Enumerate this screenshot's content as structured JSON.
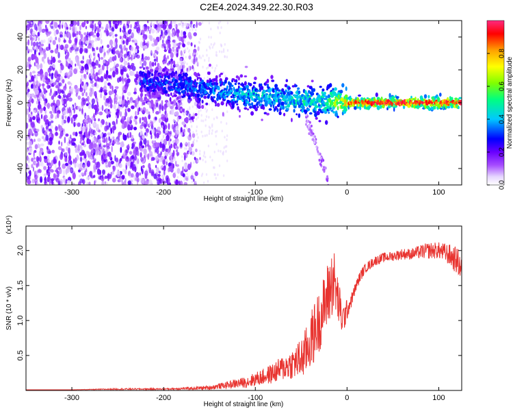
{
  "title": "C2E4.2024.349.22.30.R03",
  "chart_data": [
    {
      "type": "heatmap",
      "xlabel": "Height of straight line (km)",
      "ylabel": "Frequency (Hz)",
      "xlim": [
        -350,
        125
      ],
      "ylim": [
        -50,
        50
      ],
      "xticks": [
        -300,
        -200,
        -100,
        0,
        100
      ],
      "yticks": [
        -40,
        -20,
        0,
        20,
        40
      ],
      "xtick_labels": [
        "-300",
        "-200",
        "-100",
        "0",
        "100"
      ],
      "ytick_labels": [
        "-40",
        "-20",
        "0",
        "20",
        "40"
      ],
      "grid": false,
      "colorbar": {
        "label": "Normalized spectral amplitude",
        "range": [
          0,
          1
        ],
        "ticks": [
          0.0,
          0.2,
          0.4,
          0.6,
          0.8
        ],
        "tick_labels": [
          "0.0",
          "0.2",
          "0.4",
          "0.6",
          "0.8"
        ],
        "colors": [
          "#ffffff",
          "#e6d6ff",
          "#a64dff",
          "#6a00ff",
          "#0000ff",
          "#00c8ff",
          "#00ff80",
          "#80ff00",
          "#ffff00",
          "#ffa000",
          "#ff0000",
          "#ff2a80"
        ]
      },
      "ridge": {
        "x": [
          -225,
          -200,
          -175,
          -150,
          -125,
          -100,
          -80,
          -60,
          -40,
          -20,
          0,
          25,
          50,
          75,
          100,
          125
        ],
        "center_frequency": [
          13,
          12,
          10,
          8,
          6,
          4,
          3,
          2,
          1,
          0.5,
          0,
          0,
          0,
          0,
          0,
          0
        ],
        "peak_amplitude": [
          0.35,
          0.35,
          0.4,
          0.4,
          0.45,
          0.5,
          0.5,
          0.55,
          0.55,
          0.6,
          0.85,
          0.9,
          0.9,
          0.9,
          0.9,
          0.9
        ]
      }
    },
    {
      "type": "line",
      "xlabel": "Height of straight line (km)",
      "ylabel": "SNR (10 * v/v)",
      "y_multiplier_label": "(x10⁴)",
      "xlim": [
        -350,
        125
      ],
      "ylim": [
        0,
        2.35
      ],
      "xticks": [
        -300,
        -200,
        -100,
        0,
        100
      ],
      "yticks": [
        0.5,
        1.0,
        1.5,
        2.0
      ],
      "xtick_labels": [
        "-300",
        "-200",
        "-100",
        "0",
        "100"
      ],
      "ytick_labels": [
        "0.5",
        "1.0",
        "1.5",
        "2.0"
      ],
      "grid": false,
      "color": "#e8332f",
      "x": [
        -350,
        -300,
        -250,
        -200,
        -170,
        -150,
        -130,
        -110,
        -100,
        -90,
        -80,
        -70,
        -60,
        -50,
        -45,
        -40,
        -35,
        -30,
        -25,
        -20,
        -15,
        -10,
        -5,
        0,
        5,
        10,
        15,
        20,
        25,
        30,
        40,
        50,
        60,
        70,
        80,
        90,
        100,
        110,
        120,
        125
      ],
      "values": [
        0.01,
        0.01,
        0.02,
        0.02,
        0.03,
        0.04,
        0.08,
        0.12,
        0.16,
        0.2,
        0.25,
        0.32,
        0.38,
        0.45,
        0.55,
        0.7,
        0.85,
        1.0,
        1.2,
        1.4,
        1.6,
        1.3,
        1.0,
        1.15,
        1.3,
        1.5,
        1.65,
        1.75,
        1.8,
        1.85,
        1.9,
        1.92,
        1.95,
        1.95,
        1.98,
        2.0,
        2.0,
        1.95,
        1.85,
        1.75
      ],
      "noise_amplitude": [
        0.0,
        0.0,
        0.01,
        0.01,
        0.02,
        0.03,
        0.05,
        0.08,
        0.1,
        0.12,
        0.15,
        0.18,
        0.22,
        0.3,
        0.35,
        0.4,
        0.45,
        0.45,
        0.45,
        0.5,
        0.5,
        0.35,
        0.25,
        0.15,
        0.1,
        0.08,
        0.08,
        0.07,
        0.07,
        0.07,
        0.07,
        0.07,
        0.08,
        0.08,
        0.1,
        0.12,
        0.12,
        0.15,
        0.2,
        0.2
      ]
    }
  ]
}
